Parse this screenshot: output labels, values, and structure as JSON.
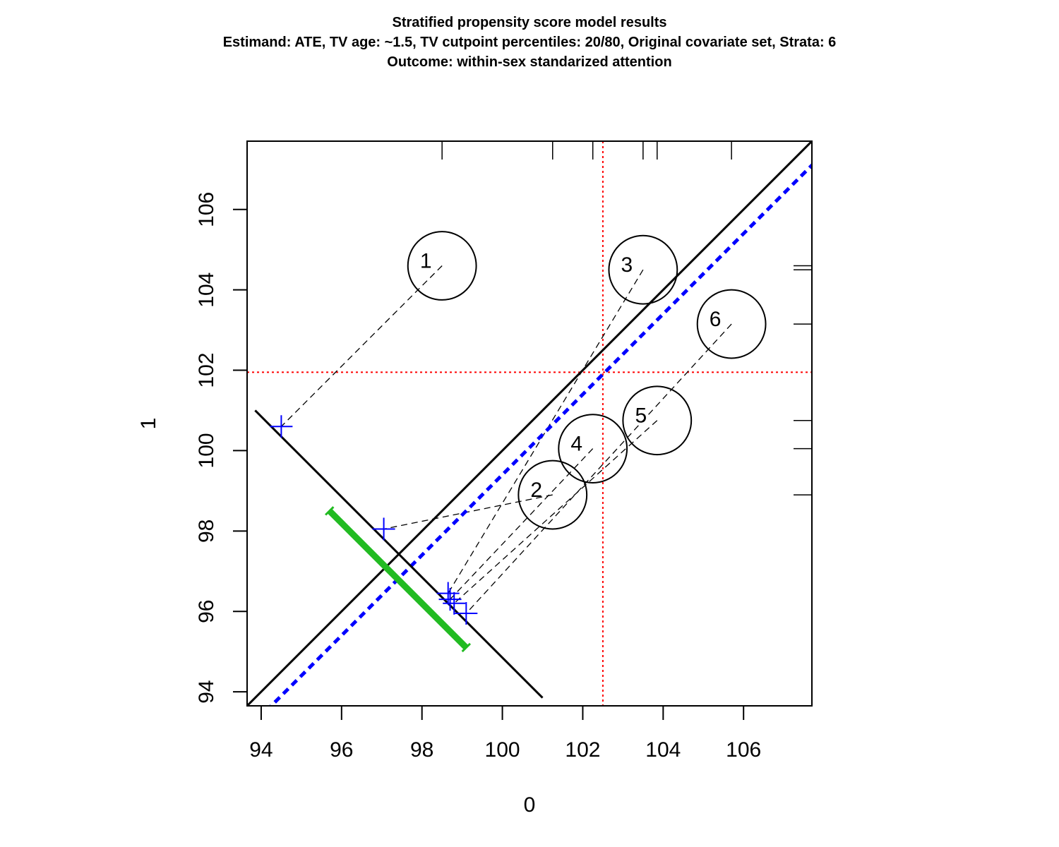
{
  "chart_data": {
    "type": "scatter",
    "title_lines": [
      "Stratified propensity score model results",
      "Estimand: ATE, TV age: ~1.5, TV cutpoint percentiles: 20/80, Original covariate set, Strata: 6",
      "Outcome: within-sex standarized attention"
    ],
    "xlabel": "0",
    "ylabel": "1",
    "xlim": [
      93.65,
      107.7
    ],
    "ylim": [
      93.65,
      107.7
    ],
    "x_ticks": [
      94,
      96,
      98,
      100,
      102,
      104,
      106
    ],
    "y_ticks": [
      94,
      96,
      98,
      100,
      102,
      104,
      106
    ],
    "grid": false,
    "strata": [
      {
        "label": "1",
        "x": 98.5,
        "y": 104.6,
        "r": 0.85
      },
      {
        "label": "2",
        "x": 101.25,
        "y": 98.9,
        "r": 0.85
      },
      {
        "label": "3",
        "x": 103.5,
        "y": 104.5,
        "r": 0.85
      },
      {
        "label": "4",
        "x": 102.25,
        "y": 100.05,
        "r": 0.85
      },
      {
        "label": "5",
        "x": 103.85,
        "y": 100.75,
        "r": 0.85
      },
      {
        "label": "6",
        "x": 105.7,
        "y": 103.15,
        "r": 0.85
      }
    ],
    "projected_points": [
      {
        "x": 94.5,
        "y": 100.6
      },
      {
        "x": 97.05,
        "y": 98.05
      },
      {
        "x": 98.65,
        "y": 96.45
      },
      {
        "x": 98.7,
        "y": 96.3
      },
      {
        "x": 98.8,
        "y": 96.2
      },
      {
        "x": 99.1,
        "y": 95.95
      }
    ],
    "identity_line": {
      "color": "#000000"
    },
    "effect_line": {
      "offset": -0.6,
      "color": "#0000ff",
      "style": "dashed"
    },
    "perpendicular_line": {
      "x": [
        93.85,
        101.0
      ],
      "y": [
        101.0,
        93.85
      ],
      "color": "#000000"
    },
    "confidence_interval": {
      "x": [
        95.7,
        99.1
      ],
      "y": [
        98.5,
        95.1
      ],
      "color": "#22bb22"
    },
    "mean_lines": {
      "x": 102.5,
      "y": 101.95,
      "color": "#ff0000"
    },
    "x_rug": [
      98.5,
      101.25,
      102.25,
      103.5,
      103.85,
      105.7
    ],
    "y_rug": [
      104.6,
      104.5,
      103.15,
      100.75,
      100.05,
      98.9
    ]
  }
}
